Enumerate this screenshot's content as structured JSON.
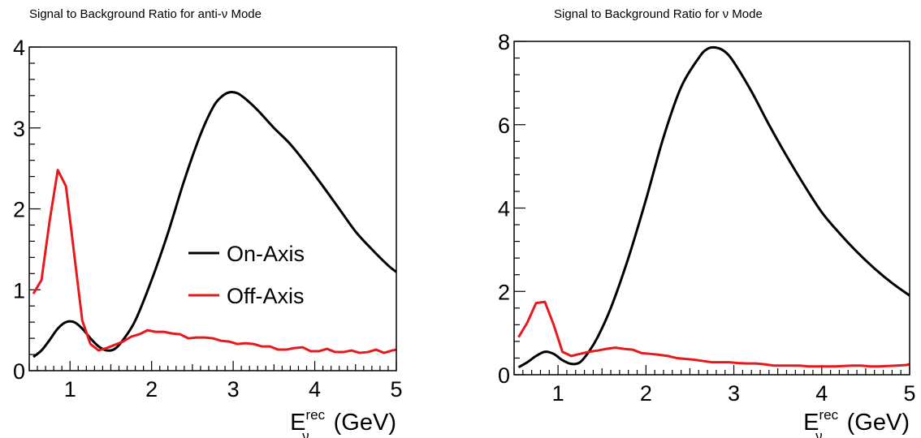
{
  "chart_data": [
    {
      "type": "line",
      "title": "Signal to Background Ratio for anti-ν Mode",
      "xlabel_main": "E",
      "xlabel_sup": "rec",
      "xlabel_sub": "ν",
      "xlabel_unit": " (GeV)",
      "xlim": [
        0.5,
        5
      ],
      "ylim": [
        0,
        4
      ],
      "xticks": [
        1,
        2,
        3,
        4,
        5
      ],
      "yticks": [
        0,
        1,
        2,
        3,
        4
      ],
      "grid": false,
      "legend": {
        "placement": "center",
        "entries": [
          "On-Axis",
          "Off-Axis"
        ]
      },
      "series": [
        {
          "name": "On-Axis",
          "color": "#000000",
          "smooth": true,
          "x": [
            0.55,
            0.65,
            0.75,
            0.85,
            0.95,
            1.05,
            1.15,
            1.25,
            1.35,
            1.45,
            1.55,
            1.65,
            1.8,
            2.0,
            2.2,
            2.4,
            2.6,
            2.75,
            2.85,
            2.95,
            3.05,
            3.15,
            3.3,
            3.5,
            3.7,
            3.9,
            4.1,
            4.3,
            4.5,
            4.7,
            4.9,
            5.0
          ],
          "y": [
            0.17,
            0.25,
            0.38,
            0.52,
            0.6,
            0.6,
            0.52,
            0.4,
            0.3,
            0.25,
            0.27,
            0.38,
            0.62,
            1.12,
            1.7,
            2.35,
            2.92,
            3.25,
            3.38,
            3.44,
            3.43,
            3.36,
            3.22,
            3.0,
            2.8,
            2.55,
            2.28,
            2.0,
            1.72,
            1.5,
            1.3,
            1.22
          ]
        },
        {
          "name": "Off-Axis",
          "color": "#e41a1c",
          "smooth": false,
          "x": [
            0.55,
            0.65,
            0.75,
            0.85,
            0.95,
            1.05,
            1.15,
            1.25,
            1.35,
            1.45,
            1.55,
            1.65,
            1.75,
            1.85,
            1.95,
            2.05,
            2.15,
            2.25,
            2.35,
            2.45,
            2.55,
            2.65,
            2.75,
            2.85,
            2.95,
            3.05,
            3.15,
            3.25,
            3.35,
            3.45,
            3.55,
            3.65,
            3.75,
            3.85,
            3.95,
            4.05,
            4.15,
            4.25,
            4.35,
            4.45,
            4.55,
            4.65,
            4.75,
            4.85,
            4.95,
            5.0
          ],
          "y": [
            0.95,
            1.12,
            1.85,
            2.48,
            2.28,
            1.45,
            0.62,
            0.33,
            0.25,
            0.28,
            0.32,
            0.36,
            0.42,
            0.45,
            0.5,
            0.48,
            0.48,
            0.46,
            0.45,
            0.4,
            0.41,
            0.41,
            0.4,
            0.37,
            0.36,
            0.33,
            0.34,
            0.33,
            0.3,
            0.3,
            0.26,
            0.26,
            0.28,
            0.29,
            0.24,
            0.24,
            0.27,
            0.23,
            0.23,
            0.25,
            0.22,
            0.23,
            0.26,
            0.22,
            0.25,
            0.26
          ]
        }
      ]
    },
    {
      "type": "line",
      "title": "Signal to Background Ratio for ν Mode",
      "xlabel_main": "E",
      "xlabel_sup": "rec",
      "xlabel_sub": "ν",
      "xlabel_unit": " (GeV)",
      "xlim": [
        0.5,
        5
      ],
      "ylim": [
        0,
        8
      ],
      "xticks": [
        1,
        2,
        3,
        4,
        5
      ],
      "yticks": [
        0,
        2,
        4,
        6,
        8
      ],
      "grid": false,
      "series": [
        {
          "name": "On-Axis",
          "color": "#000000",
          "smooth": true,
          "x": [
            0.55,
            0.65,
            0.75,
            0.85,
            0.95,
            1.05,
            1.15,
            1.25,
            1.35,
            1.45,
            1.6,
            1.8,
            2.0,
            2.2,
            2.4,
            2.6,
            2.7,
            2.8,
            2.9,
            3.0,
            3.2,
            3.4,
            3.6,
            3.8,
            4.0,
            4.2,
            4.4,
            4.6,
            4.8,
            5.0
          ],
          "y": [
            0.18,
            0.3,
            0.45,
            0.55,
            0.5,
            0.35,
            0.26,
            0.3,
            0.55,
            0.9,
            1.6,
            2.8,
            4.2,
            5.7,
            6.9,
            7.6,
            7.82,
            7.85,
            7.75,
            7.5,
            6.8,
            6.0,
            5.25,
            4.55,
            3.9,
            3.4,
            2.95,
            2.55,
            2.2,
            1.9
          ]
        },
        {
          "name": "Off-Axis",
          "color": "#e41a1c",
          "smooth": false,
          "x": [
            0.55,
            0.65,
            0.75,
            0.85,
            0.95,
            1.05,
            1.15,
            1.25,
            1.35,
            1.45,
            1.55,
            1.65,
            1.75,
            1.85,
            1.95,
            2.05,
            2.15,
            2.25,
            2.35,
            2.45,
            2.55,
            2.65,
            2.75,
            2.85,
            2.95,
            3.05,
            3.15,
            3.25,
            3.35,
            3.45,
            3.55,
            3.65,
            3.75,
            3.85,
            3.95,
            4.05,
            4.15,
            4.25,
            4.35,
            4.45,
            4.55,
            4.65,
            4.75,
            4.85,
            4.95,
            5.0
          ],
          "y": [
            0.9,
            1.25,
            1.72,
            1.75,
            1.2,
            0.55,
            0.45,
            0.5,
            0.55,
            0.58,
            0.62,
            0.65,
            0.62,
            0.6,
            0.52,
            0.5,
            0.48,
            0.45,
            0.4,
            0.38,
            0.36,
            0.33,
            0.3,
            0.3,
            0.3,
            0.28,
            0.27,
            0.27,
            0.25,
            0.22,
            0.22,
            0.22,
            0.22,
            0.2,
            0.2,
            0.2,
            0.2,
            0.21,
            0.22,
            0.22,
            0.2,
            0.2,
            0.21,
            0.22,
            0.23,
            0.25
          ]
        }
      ]
    }
  ]
}
